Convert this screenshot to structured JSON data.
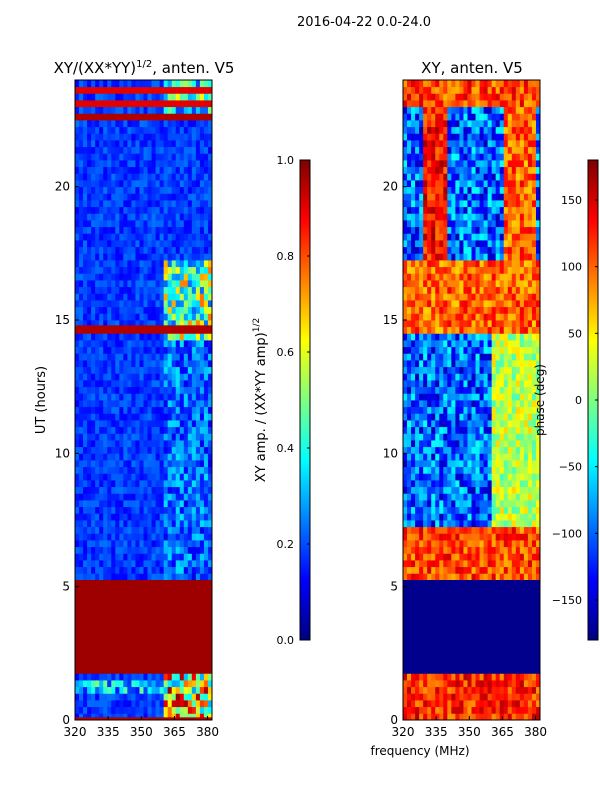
{
  "figure": {
    "suptitle": "2016-04-22 0.0-24.0",
    "xlabel_shared": "frequency (MHz)"
  },
  "colors": {
    "jet": [
      "#00007f",
      "#0000ff",
      "#007fff",
      "#00ffff",
      "#7fff7f",
      "#ffff00",
      "#ff7f00",
      "#ff0000",
      "#7f0000"
    ]
  },
  "chart_data": [
    {
      "type": "heatmap",
      "title_main": "XY/(XX*YY)",
      "title_sup": "1/2",
      "title_suffix": ", anten. V5",
      "xlabel": "",
      "ylabel": "UT (hours)",
      "xlim": [
        320,
        382
      ],
      "ylim": [
        0,
        24
      ],
      "xticks": [
        320,
        335,
        350,
        365,
        380
      ],
      "yticks": [
        0,
        5,
        10,
        15,
        20
      ],
      "xtick_labels": [
        "320",
        "335",
        "350",
        "365",
        "380"
      ],
      "ytick_labels": [
        "0",
        "5",
        "10",
        "15",
        "20"
      ],
      "colorbar": {
        "label_main": "XY amp. / (XX*YY amp)",
        "label_sup": "1/2",
        "range": [
          0.0,
          1.0
        ],
        "ticks": [
          0.0,
          0.2,
          0.4,
          0.6,
          0.8,
          1.0
        ],
        "tick_labels": [
          "0.0",
          "0.2",
          "0.4",
          "0.6",
          "0.8",
          "1.0"
        ]
      },
      "bands": [
        {
          "t0": 0.0,
          "t1": 0.1,
          "v": 0.95
        },
        {
          "t0": 1.75,
          "t1": 5.25,
          "v": 0.97
        },
        {
          "t0": 14.55,
          "t1": 14.8,
          "v": 0.95
        },
        {
          "t0": 22.5,
          "t1": 22.65,
          "v": 0.95
        },
        {
          "t0": 23.1,
          "t1": 23.2,
          "v": 0.9
        },
        {
          "t0": 23.55,
          "t1": 23.65,
          "v": 0.9
        }
      ],
      "features": [
        {
          "f0": 320,
          "f1": 382,
          "t0": 1.0,
          "t1": 1.5,
          "v": 0.35
        },
        {
          "f0": 360,
          "f1": 382,
          "t0": 0.0,
          "t1": 1.75,
          "v": 0.7
        },
        {
          "f0": 360,
          "f1": 382,
          "t0": 14.2,
          "t1": 17.2,
          "v": 0.55
        },
        {
          "f0": 360,
          "f1": 382,
          "t0": 5.3,
          "t1": 14.2,
          "v": 0.25
        },
        {
          "f0": 360,
          "f1": 382,
          "t0": 22.8,
          "t1": 24.0,
          "v": 0.45
        }
      ]
    },
    {
      "type": "heatmap",
      "title_main": "XY, anten. V5",
      "xlabel": "frequency (MHz)",
      "ylabel": "",
      "xlim": [
        320,
        382
      ],
      "ylim": [
        0,
        24
      ],
      "xticks": [
        320,
        335,
        350,
        365,
        380
      ],
      "yticks": [
        0,
        5,
        10,
        15,
        20
      ],
      "xtick_labels": [
        "320",
        "335",
        "350",
        "365",
        "380"
      ],
      "ytick_labels": [
        "0",
        "5",
        "10",
        "15",
        "20"
      ],
      "colorbar": {
        "label": "phase (deg)",
        "range": [
          -180,
          180
        ],
        "ticks": [
          -150,
          -100,
          -50,
          0,
          50,
          100,
          150
        ],
        "tick_labels": [
          "−150",
          "−100",
          "−50",
          "0",
          "50",
          "100",
          "150"
        ]
      },
      "bands": [
        {
          "t0": 1.75,
          "t1": 5.25,
          "v": -175
        },
        {
          "t0": 0.0,
          "t1": 1.75,
          "v": 120
        },
        {
          "t0": 5.3,
          "t1": 7.3,
          "v": 110
        },
        {
          "t0": 14.4,
          "t1": 17.3,
          "v": 100
        },
        {
          "t0": 23.0,
          "t1": 24.0,
          "v": 110
        }
      ],
      "features": [
        {
          "f0": 330,
          "f1": 340,
          "t0": 17.3,
          "t1": 23.0,
          "v": 130
        },
        {
          "f0": 365,
          "f1": 380,
          "t0": 17.3,
          "t1": 23.0,
          "v": 100
        },
        {
          "f0": 360,
          "f1": 382,
          "t0": 7.3,
          "t1": 14.4,
          "v": 20
        }
      ]
    }
  ]
}
